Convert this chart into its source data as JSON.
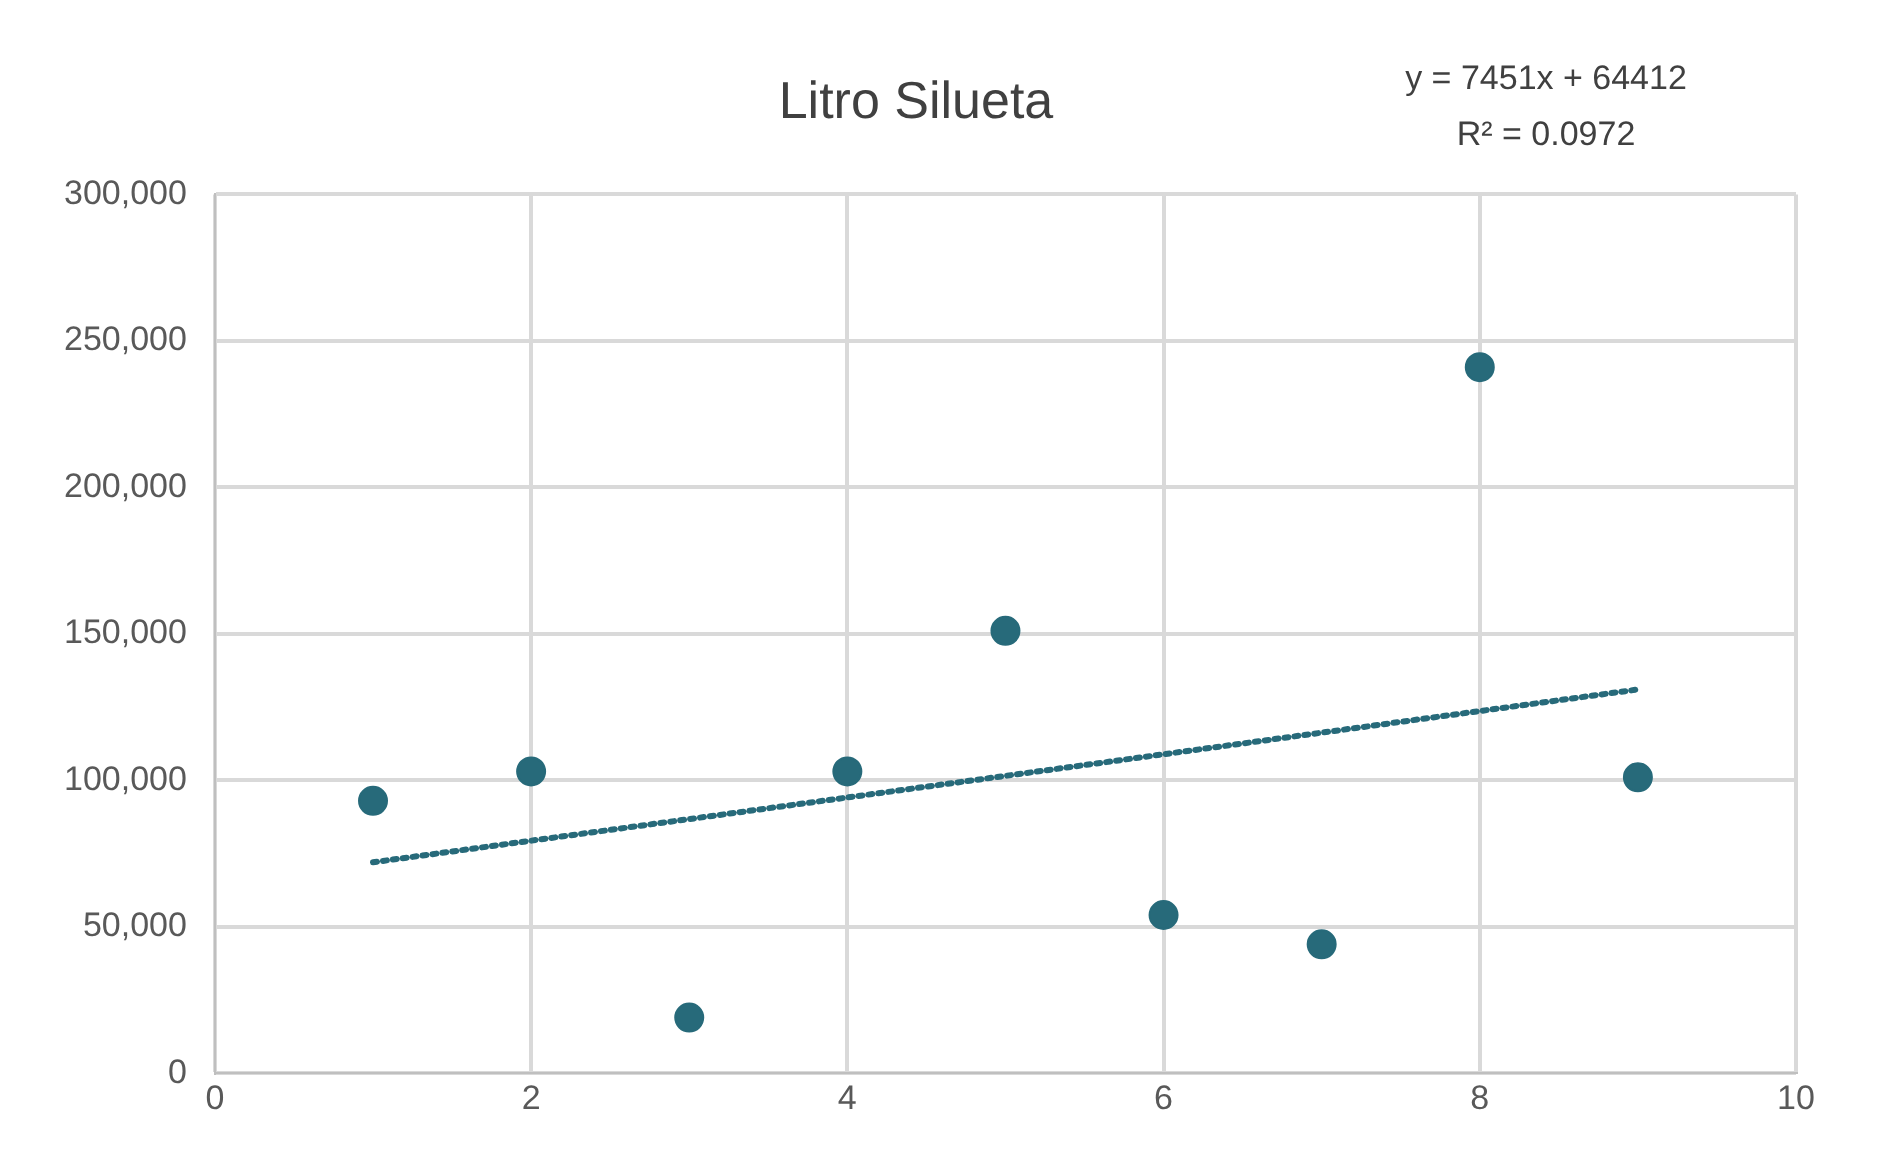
{
  "chart_data": {
    "type": "scatter",
    "title": "Litro Silueta",
    "x": [
      1,
      2,
      3,
      4,
      5,
      6,
      7,
      8,
      9
    ],
    "series": [
      {
        "type": "scatter",
        "color": "#276a7a",
        "values": [
          93000,
          103000,
          19000,
          103000,
          151000,
          54000,
          44000,
          241000,
          101000
        ]
      },
      {
        "type": "line",
        "color": "#276a7a",
        "line_style": "dotted",
        "marker": "none",
        "x": [
          1,
          9
        ],
        "values": [
          72000,
          131000
        ]
      }
    ],
    "xlim": [
      0,
      10
    ],
    "xticks": [
      0,
      2,
      4,
      6,
      8,
      10
    ],
    "ylim": [
      0,
      300000
    ],
    "yticks": [
      0,
      {
        "value": 50000,
        "label": "50,000"
      },
      {
        "value": 100000,
        "label": "100,000"
      },
      {
        "value": 150000,
        "label": "150,000"
      },
      {
        "value": 200000,
        "label": "200,000"
      },
      {
        "value": 250000,
        "label": "250,000"
      },
      {
        "value": 300000,
        "label": "300,000"
      }
    ],
    "grid": true,
    "legend": false,
    "marker": "circle",
    "annotations": [
      "y = 7451x + 64412",
      "R² = 0.0972"
    ]
  }
}
